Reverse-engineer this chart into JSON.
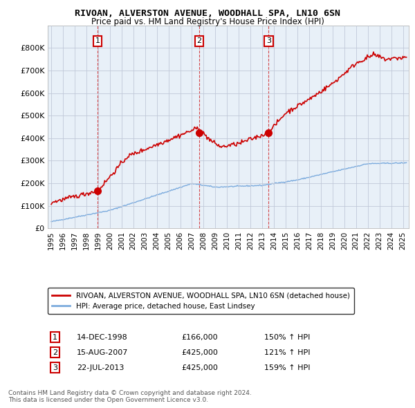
{
  "title": "RIVOAN, ALVERSTON AVENUE, WOODHALL SPA, LN10 6SN",
  "subtitle": "Price paid vs. HM Land Registry's House Price Index (HPI)",
  "ylabel_ticks": [
    "£0",
    "£100K",
    "£200K",
    "£300K",
    "£400K",
    "£500K",
    "£600K",
    "£700K",
    "£800K"
  ],
  "ytick_values": [
    0,
    100000,
    200000,
    300000,
    400000,
    500000,
    600000,
    700000,
    800000
  ],
  "ylim": [
    0,
    900000
  ],
  "xlim_start": 1994.7,
  "xlim_end": 2025.5,
  "red_color": "#cc0000",
  "blue_color": "#7aaadd",
  "bg_color": "#ffffff",
  "chart_bg": "#e8f0f8",
  "grid_color": "#c0c8d8",
  "sales": [
    {
      "num": 1,
      "year": 1998.95,
      "price": 166000,
      "label": "1",
      "date": "14-DEC-1998",
      "amount": "£166,000",
      "pct": "150% ↑ HPI"
    },
    {
      "num": 2,
      "year": 2007.62,
      "price": 425000,
      "label": "2",
      "date": "15-AUG-2007",
      "amount": "£425,000",
      "pct": "121% ↑ HPI"
    },
    {
      "num": 3,
      "year": 2013.55,
      "price": 425000,
      "label": "3",
      "date": "22-JUL-2013",
      "amount": "£425,000",
      "pct": "159% ↑ HPI"
    }
  ],
  "legend_red_label": "RIVOAN, ALVERSTON AVENUE, WOODHALL SPA, LN10 6SN (detached house)",
  "legend_blue_label": "HPI: Average price, detached house, East Lindsey",
  "footer1": "Contains HM Land Registry data © Crown copyright and database right 2024.",
  "footer2": "This data is licensed under the Open Government Licence v3.0."
}
